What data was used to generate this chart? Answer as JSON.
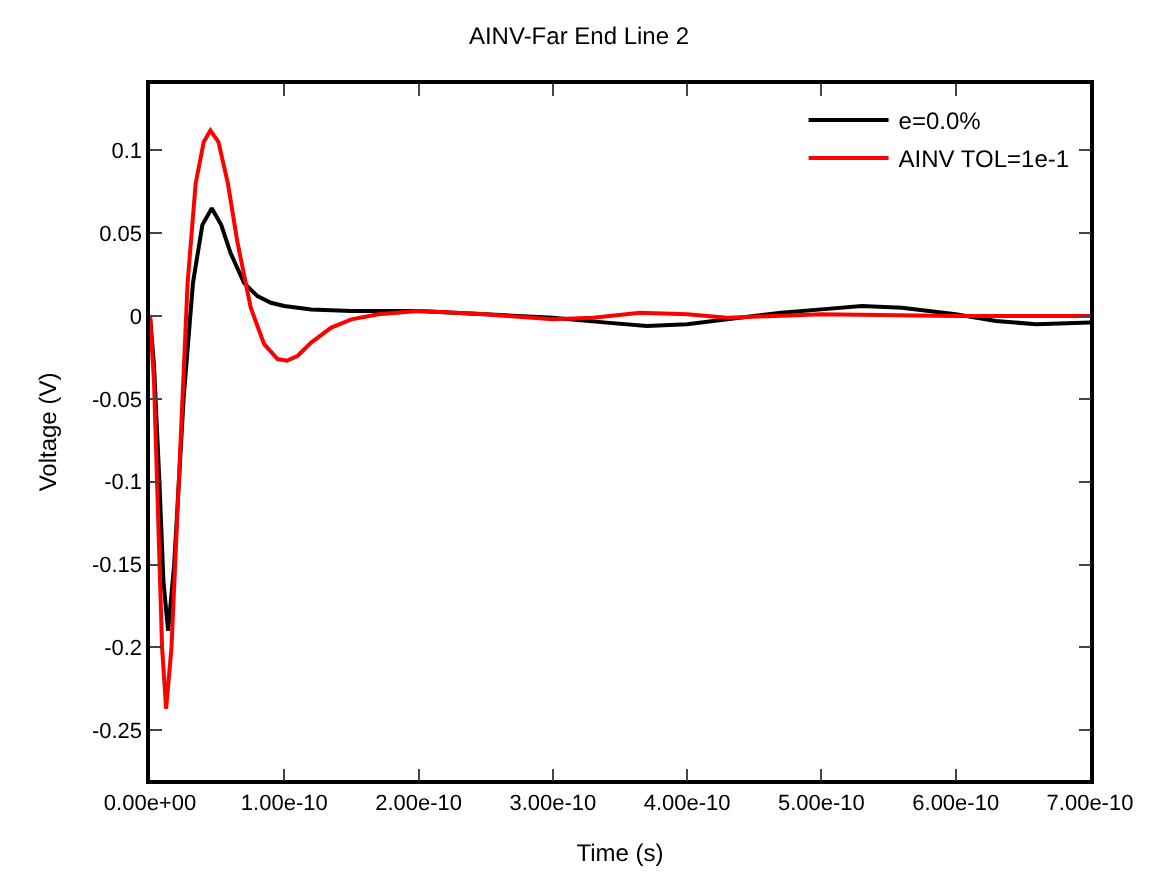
{
  "chart_data": {
    "type": "line",
    "title": "AINV-Far End Line 2",
    "xlabel": "Time (s)",
    "ylabel": "Voltage (V)",
    "xlim": [
      0,
      7e-10
    ],
    "ylim": [
      -0.28,
      0.14
    ],
    "xticks": [
      {
        "value": 0,
        "label": "0.00e+00"
      },
      {
        "value": 1e-10,
        "label": "1.00e-10"
      },
      {
        "value": 2e-10,
        "label": "2.00e-10"
      },
      {
        "value": 3e-10,
        "label": "3.00e-10"
      },
      {
        "value": 4e-10,
        "label": "4.00e-10"
      },
      {
        "value": 5e-10,
        "label": "5.00e-10"
      },
      {
        "value": 6e-10,
        "label": "6.00e-10"
      },
      {
        "value": 7e-10,
        "label": "7.00e-10"
      }
    ],
    "yticks": [
      0.1,
      0.05,
      0,
      -0.05,
      -0.1,
      -0.15,
      -0.2,
      -0.25
    ],
    "legend": "top right",
    "marker": "none",
    "line_style": "solid",
    "series": [
      {
        "name": "e=0.0%",
        "color": "#000000",
        "x": [
          0,
          3e-12,
          7e-12,
          1e-11,
          1.35e-11,
          1.8e-11,
          2.5e-11,
          3.2e-11,
          3.9e-11,
          4.6e-11,
          5.3e-11,
          6e-11,
          7e-11,
          8e-11,
          9e-11,
          1e-10,
          1.2e-10,
          1.5e-10,
          2e-10,
          2.5e-10,
          3e-10,
          3.4e-10,
          3.7e-10,
          4e-10,
          4.3e-10,
          4.7e-10,
          5e-10,
          5.3e-10,
          5.6e-10,
          6e-10,
          6.3e-10,
          6.6e-10,
          7e-10
        ],
        "values": [
          0,
          -0.03,
          -0.1,
          -0.16,
          -0.19,
          -0.15,
          -0.05,
          0.02,
          0.055,
          0.065,
          0.055,
          0.038,
          0.02,
          0.012,
          0.008,
          0.006,
          0.004,
          0.003,
          0.003,
          0.001,
          -0.001,
          -0.004,
          -0.006,
          -0.005,
          -0.002,
          0.002,
          0.004,
          0.006,
          0.005,
          0.001,
          -0.003,
          -0.005,
          -0.004
        ]
      },
      {
        "name": "AINV TOL=1e-1",
        "color": "#ff0000",
        "x": [
          0,
          3e-12,
          6e-12,
          9e-12,
          1.2e-11,
          1.6e-11,
          2.2e-11,
          2.8e-11,
          3.4e-11,
          4e-11,
          4.5e-11,
          5.1e-11,
          5.8e-11,
          6.5e-11,
          7.5e-11,
          8.5e-11,
          9.5e-11,
          1.02e-10,
          1.1e-10,
          1.2e-10,
          1.35e-10,
          1.5e-10,
          1.7e-10,
          2e-10,
          2.5e-10,
          3e-10,
          3.3e-10,
          3.65e-10,
          4e-10,
          4.3e-10,
          5e-10,
          6e-10,
          7e-10
        ],
        "values": [
          0,
          -0.04,
          -0.12,
          -0.2,
          -0.237,
          -0.2,
          -0.09,
          0.02,
          0.08,
          0.105,
          0.112,
          0.105,
          0.08,
          0.045,
          0.005,
          -0.017,
          -0.026,
          -0.027,
          -0.024,
          -0.016,
          -0.007,
          -0.002,
          0.001,
          0.003,
          0.001,
          -0.002,
          -0.001,
          0.002,
          0.001,
          -0.001,
          0.001,
          0,
          0
        ]
      }
    ]
  }
}
